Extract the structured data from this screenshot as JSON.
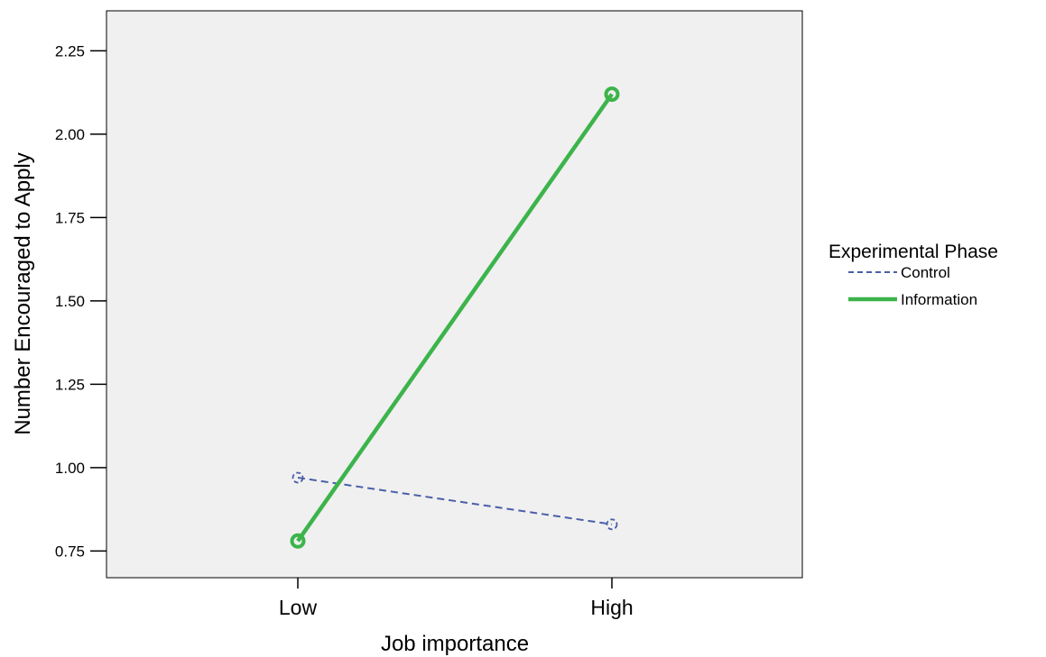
{
  "chart_data": {
    "type": "line",
    "xlabel": "Job importance",
    "ylabel": "Number Encouraged to Apply",
    "categories": [
      "Low",
      "High"
    ],
    "ylim": [
      0.67,
      2.37
    ],
    "yticks": [
      "0.75",
      "1.00",
      "1.25",
      "1.50",
      "1.75",
      "2.00",
      "2.25"
    ],
    "ytick_values": [
      0.75,
      1.0,
      1.25,
      1.5,
      1.75,
      2.0,
      2.25
    ],
    "grid": false,
    "legend": {
      "title": "Experimental Phase",
      "position": "right"
    },
    "series": [
      {
        "name": "Control",
        "values": [
          0.97,
          0.83
        ],
        "color": "#4a5fa8",
        "style": "dashed"
      },
      {
        "name": "Information",
        "values": [
          0.78,
          2.12
        ],
        "color": "#3cb44b",
        "style": "solid"
      }
    ],
    "plot_background": "#f0f0f0"
  }
}
